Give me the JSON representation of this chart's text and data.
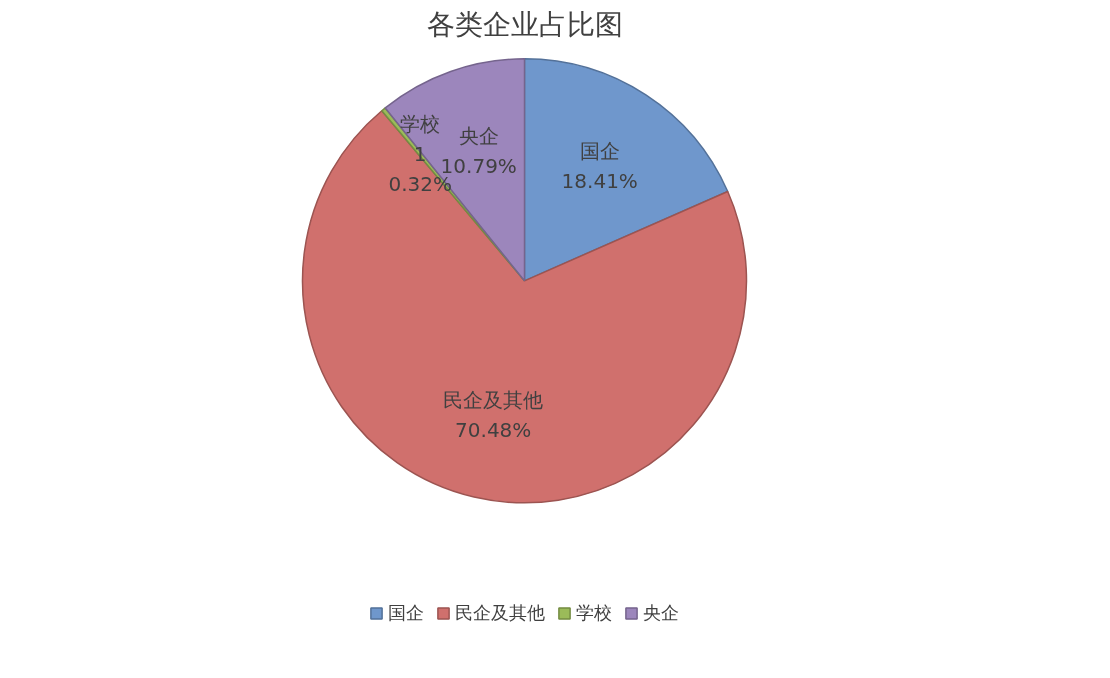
{
  "chart_data": {
    "type": "pie",
    "title": "各类企业占比图",
    "categories": [
      "国企",
      "民企及其他",
      "学校",
      "央企"
    ],
    "values": [
      18.41,
      70.48,
      0.32,
      10.79
    ],
    "colors": [
      "#6f97cc",
      "#d0706d",
      "#9bbb59",
      "#9c86bc"
    ],
    "value_labels": [
      "国企\n18.41%",
      "民企及其他\n70.48%",
      "学校\n1\n0.32%",
      "央企\n10.79%"
    ],
    "legend": "bottom"
  }
}
